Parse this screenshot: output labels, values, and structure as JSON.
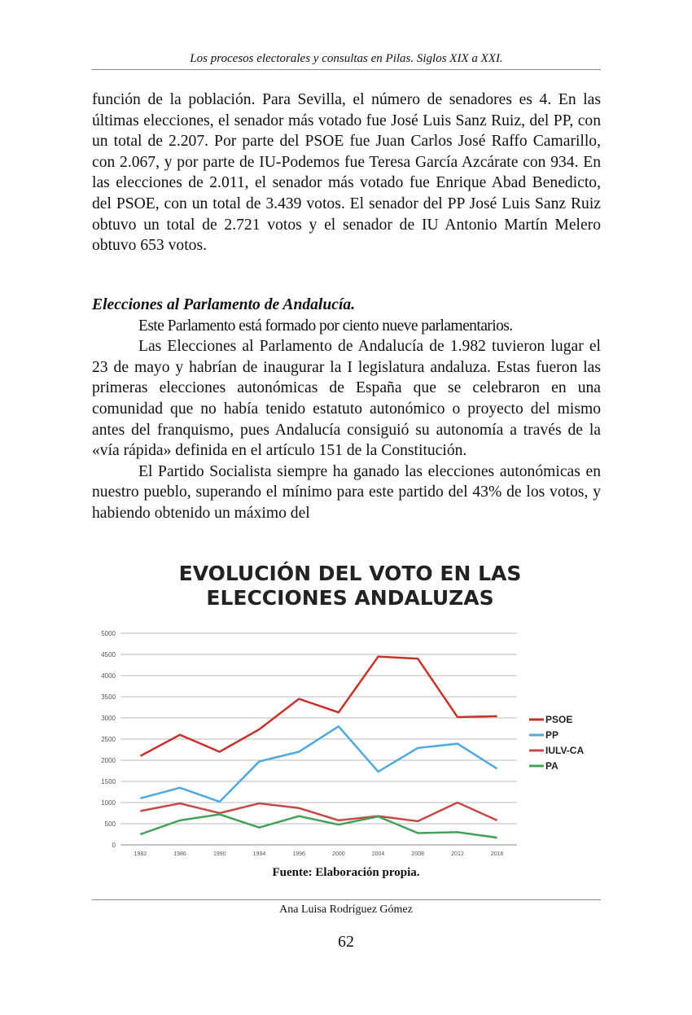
{
  "header": {
    "title": "Los procesos electorales y consultas en Pilas. Siglos XIX a XXI."
  },
  "paragraphs": [
    "función de la población. Para Sevilla, el número de senadores es 4. En las últimas elecciones, el senador más votado fue José Luis Sanz Ruiz, del PP, con un total de 2.207. Por parte del PSOE fue Juan Carlos José Raffo Camarillo, con 2.067, y por parte de IU-Podemos fue Teresa García Azcárate con 934. En las elecciones de 2.011, el senador más votado fue Enrique Abad Benedicto, del PSOE, con un total de 3.439 votos. El senador del PP José Luis Sanz Ruiz obtuvo un total de 2.721 votos y el senador de IU Antonio Martín Melero obtuvo 653 votos."
  ],
  "section": {
    "heading": "Elecciones al Parlamento de Andalucía.",
    "paragraphs": [
      "Este Parlamento está formado por ciento nueve parlamentarios.",
      "Las Elecciones al Parlamento de Andalucía de 1.982 tuvieron lugar el 23 de mayo y habrían de inaugurar la I legislatura andaluza. Estas fueron las primeras elecciones autonómicas de España que se celebraron en una comunidad que no había tenido estatuto autonómico o proyecto del mismo antes del franquismo, pues Andalucía consiguió su autonomía a través de la «vía rápida» definida en el artículo 151 de la Constitución.",
      "El Partido Socialista siempre ha ganado las elecciones autonómicas en nuestro pueblo, superando el mínimo para este partido del 43% de los votos, y habiendo obtenido un máximo del"
    ]
  },
  "chart_data": {
    "type": "line",
    "title": "EVOLUCIÓN DEL VOTO EN LAS ELECCIONES ANDALUZAS",
    "categories": [
      "1982",
      "1986",
      "1990",
      "1994",
      "1996",
      "2000",
      "2004",
      "2008",
      "2012",
      "2016"
    ],
    "series": [
      {
        "name": "PSOE",
        "color": "#c8312b",
        "values": [
          2100,
          2600,
          2200,
          2730,
          3450,
          3130,
          4450,
          4400,
          3020,
          3040
        ]
      },
      {
        "name": "PP",
        "color": "#4fa8de",
        "values": [
          1100,
          1350,
          1020,
          1970,
          2200,
          2800,
          1730,
          2290,
          2390,
          1800
        ]
      },
      {
        "name": "IULV-CA",
        "color": "#c44a45",
        "values": [
          800,
          980,
          750,
          980,
          870,
          580,
          680,
          560,
          1000,
          580
        ]
      },
      {
        "name": "PA",
        "color": "#44a05a",
        "values": [
          250,
          580,
          720,
          410,
          680,
          480,
          670,
          280,
          300,
          170
        ]
      }
    ],
    "ylim": [
      0,
      5000
    ],
    "yticks": [
      0,
      500,
      1000,
      1500,
      2000,
      2500,
      3000,
      3500,
      4000,
      4500,
      5000
    ],
    "grid": true,
    "legend": "right"
  },
  "caption": "Fuente: Elaboración propia.",
  "footer": {
    "author": "Ana Luisa Rodríguez Gómez",
    "page_number": "62"
  }
}
